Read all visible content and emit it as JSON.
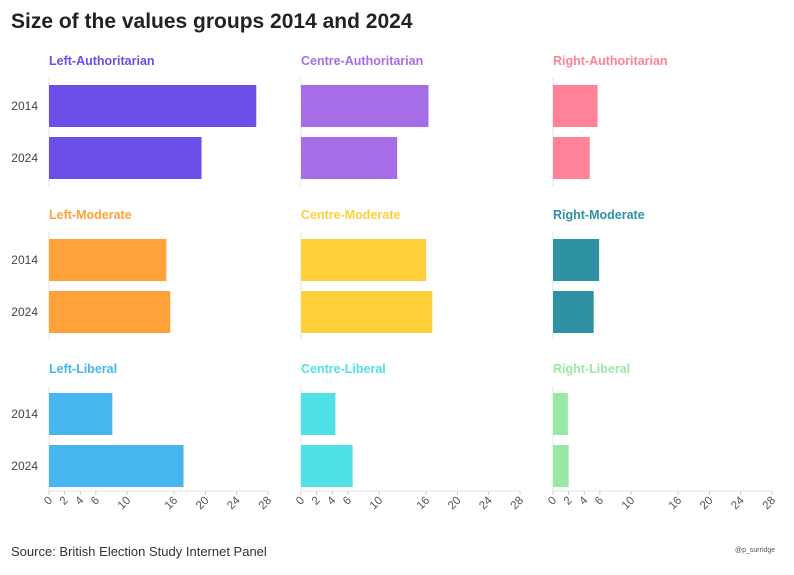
{
  "title": "Size of the values groups 2014 and 2024",
  "source": "Source: British Election Study Internet Panel",
  "credit": "@p_surridge",
  "chart_data": {
    "type": "bar",
    "orientation": "horizontal",
    "layout": "small-multiples 3x3",
    "categories": [
      "2014",
      "2024"
    ],
    "x_ticks": [
      0,
      2,
      4,
      6,
      10,
      16,
      20,
      24,
      28
    ],
    "xlim": [
      0,
      28
    ],
    "grid": false,
    "panels": [
      {
        "name": "Left-Authoritarian",
        "color": "#6b4de8",
        "values": [
          26.5,
          19.5
        ]
      },
      {
        "name": "Centre-Authoritarian",
        "color": "#a66ee6",
        "values": [
          16.3,
          12.3
        ]
      },
      {
        "name": "Right-Authoritarian",
        "color": "#ff8299",
        "values": [
          5.7,
          4.7
        ]
      },
      {
        "name": "Left-Moderate",
        "color": "#ffa23a",
        "values": [
          15.0,
          15.5
        ]
      },
      {
        "name": "Centre-Moderate",
        "color": "#ffd03a",
        "values": [
          16.0,
          16.8
        ]
      },
      {
        "name": "Right-Moderate",
        "color": "#2e92a2",
        "values": [
          5.9,
          5.2
        ]
      },
      {
        "name": "Left-Liberal",
        "color": "#48b6ee",
        "values": [
          8.1,
          17.2
        ]
      },
      {
        "name": "Centre-Liberal",
        "color": "#50e0e8",
        "values": [
          4.4,
          6.6
        ]
      },
      {
        "name": "Right-Liberal",
        "color": "#98e8a8",
        "values": [
          1.9,
          2.0
        ]
      }
    ]
  }
}
